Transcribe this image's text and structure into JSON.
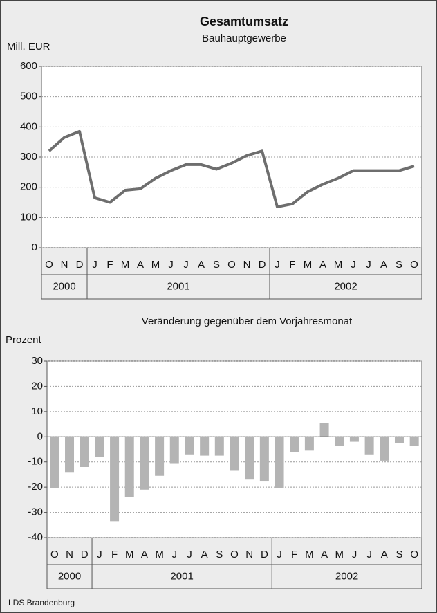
{
  "chart_data": [
    {
      "type": "line",
      "title": "Gesamtumsatz",
      "subtitle": "Bauhauptgewerbe",
      "y_label": "Mill. EUR",
      "categories": [
        "O",
        "N",
        "D",
        "J",
        "F",
        "M",
        "A",
        "M",
        "J",
        "J",
        "A",
        "S",
        "O",
        "N",
        "D",
        "J",
        "F",
        "M",
        "A",
        "M",
        "J",
        "J",
        "A",
        "S",
        "O"
      ],
      "groups": [
        {
          "label": "2000",
          "count": 3
        },
        {
          "label": "2001",
          "count": 12
        },
        {
          "label": "2002",
          "count": 10
        }
      ],
      "values": [
        320,
        365,
        385,
        165,
        150,
        190,
        195,
        230,
        255,
        275,
        275,
        260,
        280,
        305,
        320,
        135,
        145,
        185,
        210,
        230,
        255,
        255,
        255,
        255,
        270
      ],
      "color": "#6e6e6e",
      "ylim": [
        0,
        600
      ],
      "yticks": [
        0,
        100,
        200,
        300,
        400,
        500,
        600
      ],
      "grid": true
    },
    {
      "type": "bar",
      "title": "Veränderung gegenüber dem Vorjahresmonat",
      "y_label": "Prozent",
      "categories": [
        "O",
        "N",
        "D",
        "J",
        "F",
        "M",
        "A",
        "M",
        "J",
        "J",
        "A",
        "S",
        "O",
        "N",
        "D",
        "J",
        "F",
        "M",
        "A",
        "M",
        "J",
        "J",
        "A",
        "S",
        "O"
      ],
      "groups": [
        {
          "label": "2000",
          "count": 3
        },
        {
          "label": "2001",
          "count": 12
        },
        {
          "label": "2002",
          "count": 10
        }
      ],
      "values": [
        -20.5,
        -14,
        -12,
        -8,
        -33.5,
        -24,
        -21,
        -15.5,
        -10.5,
        -7,
        -7.5,
        -7.5,
        -13.5,
        -17,
        -17.5,
        -20.5,
        -6,
        -5.5,
        5.5,
        -3.5,
        -2,
        -7,
        -9.5,
        -2.5,
        -3.5
      ],
      "color": "#b4b4b4",
      "ylim": [
        -40,
        30
      ],
      "yticks": [
        -40,
        -30,
        -20,
        -10,
        0,
        10,
        20,
        30
      ],
      "grid": true
    }
  ],
  "source": "LDS Brandenburg"
}
